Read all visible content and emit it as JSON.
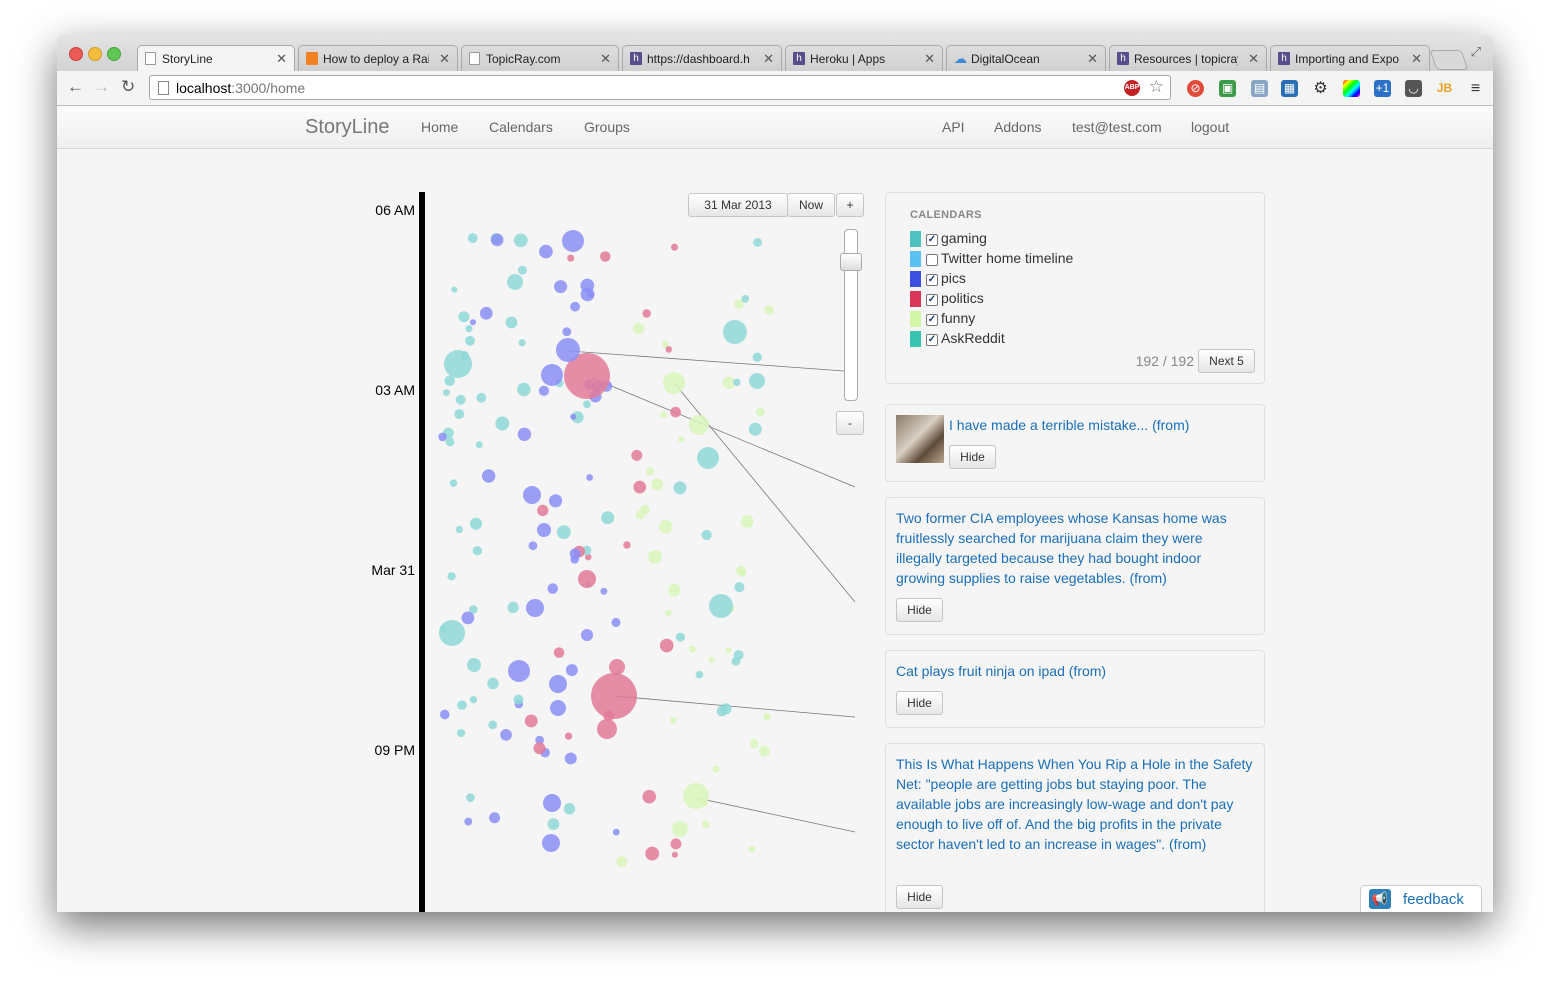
{
  "browser": {
    "tabs": [
      {
        "title": "StoryLine",
        "icon": "page-icon",
        "active": true
      },
      {
        "title": "How to deploy a Rail",
        "icon": "stackoverflow-icon"
      },
      {
        "title": "TopicRay.com",
        "icon": "page-icon"
      },
      {
        "title": "https://dashboard.h",
        "icon": "heroku-icon"
      },
      {
        "title": "Heroku | Apps",
        "icon": "heroku-icon"
      },
      {
        "title": "DigitalOcean",
        "icon": "cloud-icon"
      },
      {
        "title": "Resources | topicray",
        "icon": "heroku-icon"
      },
      {
        "title": "Importing and Expo",
        "icon": "heroku-icon"
      }
    ],
    "url_host": "localhost",
    "url_rest": ":3000/home"
  },
  "navbar": {
    "brand": "StoryLine",
    "left_links": [
      "Home",
      "Calendars",
      "Groups"
    ],
    "right_links": [
      "API",
      "Addons",
      "test@test.com",
      "logout"
    ]
  },
  "timeline": {
    "date_button": "31 Mar 2013",
    "now_button": "Now",
    "zoom_in": "+",
    "zoom_out": "-",
    "labels": [
      "06 AM",
      "03 AM",
      "Mar 31",
      "09 PM"
    ]
  },
  "calendars": {
    "title": "CALENDARS",
    "items": [
      {
        "name": "gaming",
        "color": "#4fc1c1",
        "checked": true
      },
      {
        "name": "Twitter home timeline",
        "color": "#5bc0f2",
        "checked": false
      },
      {
        "name": "pics",
        "color": "#3d4fe0",
        "checked": true
      },
      {
        "name": "politics",
        "color": "#d9365a",
        "checked": true
      },
      {
        "name": "funny",
        "color": "#d3f5a6",
        "checked": true
      },
      {
        "name": "AskReddit",
        "color": "#39c4b0",
        "checked": true
      }
    ],
    "count": "192 / 192",
    "next_button": "Next 5"
  },
  "stories": [
    {
      "title": "I have made a terrible mistake... (from)",
      "hide": "Hide",
      "has_thumb": true
    },
    {
      "title": "Two former CIA employees whose Kansas home was fruitlessly searched for marijuana claim they were illegally targeted because they had bought indoor growing supplies to raise vegetables. (from)",
      "hide": "Hide"
    },
    {
      "title": "Cat plays fruit ninja on ipad (from)",
      "hide": "Hide"
    },
    {
      "title": "This Is What Happens When You Rip a Hole in the Safety Net: \"people are getting jobs but staying poor. The available jobs are increasingly low-wage and don't pay enough to live off of. And the big profits in the private sector haven't led to an increase in wages\". (from)",
      "hide": "Hide"
    }
  ],
  "feedback": {
    "label": "feedback"
  },
  "colors": {
    "gaming_bubble": "#8fd8d8",
    "pics_bubble": "#8a8ef5",
    "politics_bubble": "#e37a98",
    "funny_bubble": "#d9f5bb",
    "link": "#1a6fb8"
  }
}
